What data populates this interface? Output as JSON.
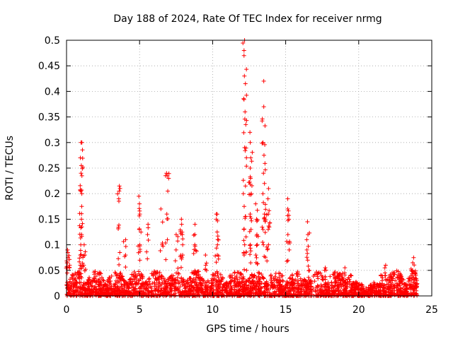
{
  "chart_data": {
    "type": "scatter",
    "title": "Day 188 of 2024, Rate Of TEC Index for receiver nrmg",
    "xlabel": "GPS time / hours",
    "ylabel": "ROTI / TECUs",
    "xlim": [
      0,
      25
    ],
    "ylim": [
      0,
      0.5
    ],
    "xticks": [
      0,
      5,
      10,
      15,
      20,
      25
    ],
    "xtick_labels": [
      "0",
      "5",
      "10",
      "15",
      "20",
      "25"
    ],
    "yticks": [
      0,
      0.05,
      0.1,
      0.15,
      0.2,
      0.25,
      0.3,
      0.35,
      0.4,
      0.45,
      0.5
    ],
    "ytick_labels": [
      "0",
      "0.05",
      "0.1",
      "0.15",
      "0.2",
      "0.25",
      "0.3",
      "0.35",
      "0.4",
      "0.45",
      "0.5"
    ],
    "grid": true,
    "marker": "plus",
    "color": "#ff0000",
    "baseline": {
      "x_range": [
        0,
        24
      ],
      "typical_max": 0.05,
      "description": "dense cloud of points between 0 and about 0.05 TECU/s across 0-24 h"
    },
    "peaks": [
      {
        "x": 0.1,
        "values": [
          0.055,
          0.065,
          0.075,
          0.085,
          0.09
        ]
      },
      {
        "x": 1.0,
        "values": [
          0.06,
          0.08,
          0.1,
          0.12,
          0.15,
          0.175,
          0.2,
          0.205,
          0.235,
          0.24,
          0.27,
          0.3,
          0.3
        ]
      },
      {
        "x": 1.2,
        "values": [
          0.06,
          0.08,
          0.1
        ]
      },
      {
        "x": 3.6,
        "values": [
          0.085,
          0.19,
          0.205,
          0.215
        ]
      },
      {
        "x": 4.0,
        "values": [
          0.08,
          0.11
        ]
      },
      {
        "x": 5.0,
        "values": [
          0.07,
          0.1,
          0.13,
          0.16,
          0.18,
          0.195
        ]
      },
      {
        "x": 5.6,
        "values": [
          0.12,
          0.14
        ]
      },
      {
        "x": 6.5,
        "values": [
          0.1,
          0.17
        ]
      },
      {
        "x": 6.9,
        "values": [
          0.11,
          0.205,
          0.235,
          0.24
        ]
      },
      {
        "x": 7.5,
        "values": [
          0.09,
          0.12
        ]
      },
      {
        "x": 7.9,
        "values": [
          0.08,
          0.1,
          0.12,
          0.14,
          0.15
        ]
      },
      {
        "x": 8.8,
        "values": [
          0.1,
          0.12,
          0.14
        ]
      },
      {
        "x": 9.5,
        "values": [
          0.06,
          0.08
        ]
      },
      {
        "x": 10.3,
        "values": [
          0.08,
          0.1,
          0.125,
          0.15,
          0.16
        ]
      },
      {
        "x": 12.2,
        "values": [
          0.08,
          0.1,
          0.13,
          0.155,
          0.175,
          0.215,
          0.29,
          0.36,
          0.415,
          0.43,
          0.47,
          0.48,
          0.5
        ]
      },
      {
        "x": 12.6,
        "values": [
          0.1,
          0.13,
          0.16,
          0.2,
          0.23,
          0.25,
          0.27,
          0.3,
          0.32
        ]
      },
      {
        "x": 13.0,
        "values": [
          0.08,
          0.1,
          0.12,
          0.15,
          0.18
        ]
      },
      {
        "x": 13.5,
        "values": [
          0.1,
          0.13,
          0.16,
          0.2,
          0.22,
          0.24,
          0.275,
          0.3,
          0.37,
          0.42
        ]
      },
      {
        "x": 13.8,
        "values": [
          0.1,
          0.13,
          0.16,
          0.19,
          0.21
        ]
      },
      {
        "x": 15.2,
        "values": [
          0.09,
          0.12,
          0.15,
          0.17,
          0.19
        ]
      },
      {
        "x": 16.5,
        "values": [
          0.07,
          0.09,
          0.12,
          0.145
        ]
      },
      {
        "x": 17.7,
        "values": [
          0.05,
          0.055
        ]
      },
      {
        "x": 19.0,
        "values": [
          0.045,
          0.055
        ]
      },
      {
        "x": 21.8,
        "values": [
          0.045,
          0.06
        ]
      },
      {
        "x": 23.7,
        "values": [
          0.05,
          0.065,
          0.075
        ]
      }
    ]
  }
}
